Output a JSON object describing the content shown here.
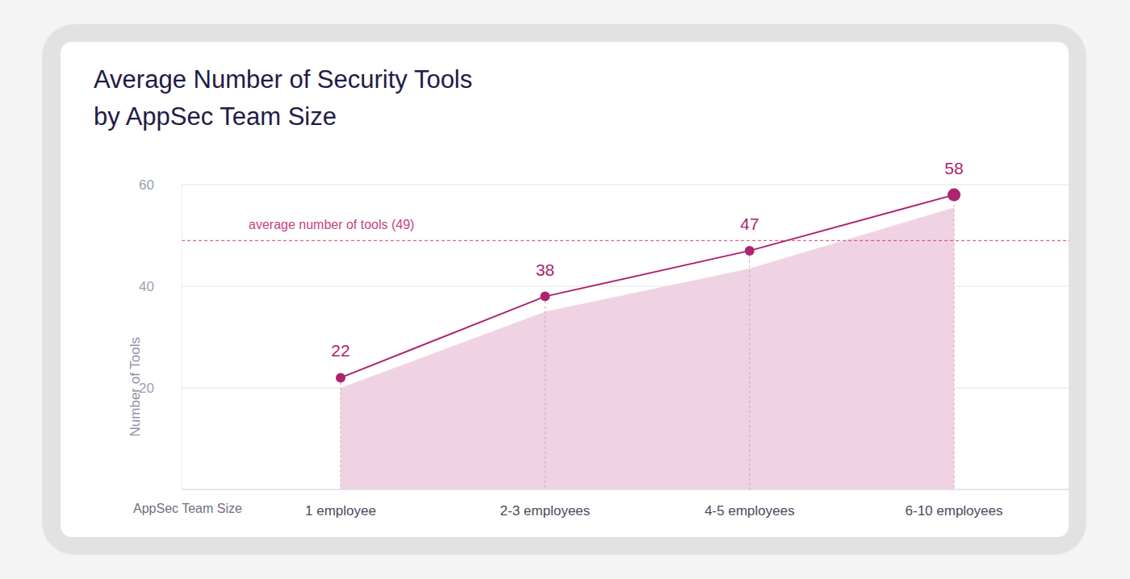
{
  "chart_data": {
    "type": "line",
    "title": "Average Number of Security Tools\nby AppSec Team Size",
    "x_label": "AppSec Team Size",
    "y_label": "Number of Tools",
    "categories": [
      "1 employee",
      "2-3 employees",
      "4-5 employees",
      "6-10 employees"
    ],
    "series": [
      {
        "type": "area",
        "color": "#f0d3e2",
        "values": [
          20,
          35,
          43.5,
          55.5
        ]
      },
      {
        "type": "line",
        "color": "#ad2470",
        "marker": "circle",
        "data_labels": true,
        "values": [
          22,
          38,
          47,
          58
        ]
      }
    ],
    "reference_line": {
      "value": 49,
      "label": "average number of tools (49)"
    },
    "ylim": [
      0,
      60
    ],
    "yticks": [
      20,
      40,
      60
    ],
    "grid": true
  }
}
